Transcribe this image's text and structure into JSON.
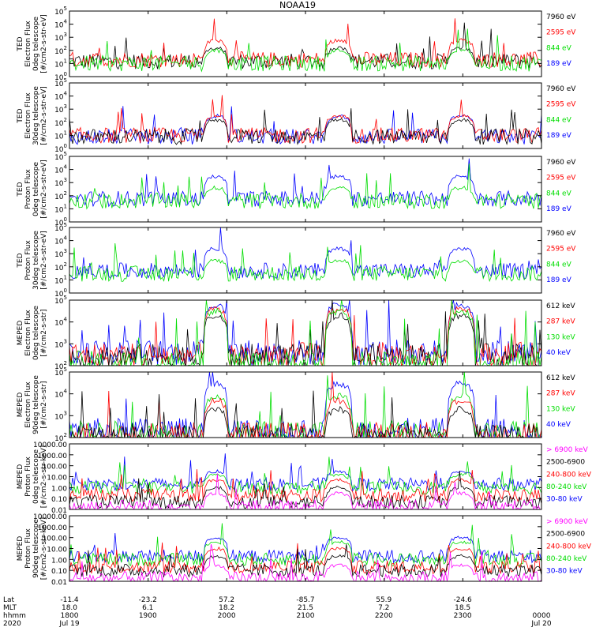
{
  "chart_data": {
    "type": "line",
    "title": "NOAA19",
    "x_range": [
      "1800",
      "0000"
    ],
    "grid": false,
    "legend": "right",
    "panels": [
      {
        "ylabel": [
          "TED",
          "Electron Flux",
          "0deg telescope",
          "[#/cm2-s-str-eV]"
        ],
        "yscale": "log",
        "ylim": [
          1,
          100000
        ],
        "yticks": [
          {
            "v": 1,
            "e": "0"
          },
          {
            "v": 10,
            "e": "1"
          },
          {
            "v": 100,
            "e": "2"
          },
          {
            "v": 1000,
            "e": "3"
          },
          {
            "v": 10000,
            "e": "4"
          },
          {
            "v": 100000,
            "e": "5"
          }
        ],
        "legend": [
          {
            "label": "7960 eV",
            "color": "#000000"
          },
          {
            "label": "2595 eV",
            "color": "#ff0000"
          },
          {
            "label": "844 eV",
            "color": "#00dd00"
          },
          {
            "label": "189 eV",
            "color": "#0000ff"
          }
        ],
        "series": [
          {
            "name": "7960 eV",
            "color": "#000000",
            "base": 15,
            "peak": 150
          },
          {
            "name": "2595 eV",
            "color": "#ff0000",
            "base": 20,
            "peak": 600
          },
          {
            "name": "844 eV",
            "color": "#00dd00",
            "base": 10,
            "peak": 100
          }
        ]
      },
      {
        "ylabel": [
          "TED",
          "Electron Flux",
          "30deg telescope",
          "[#/cm2-s-str-eV]"
        ],
        "yscale": "log",
        "ylim": [
          1,
          100000
        ],
        "yticks": [
          {
            "v": 1,
            "e": "0"
          },
          {
            "v": 10,
            "e": "1"
          },
          {
            "v": 100,
            "e": "2"
          },
          {
            "v": 1000,
            "e": "3"
          },
          {
            "v": 10000,
            "e": "4"
          },
          {
            "v": 100000,
            "e": "5"
          }
        ],
        "legend": [
          {
            "label": "7960 eV",
            "color": "#000000"
          },
          {
            "label": "2595 eV",
            "color": "#ff0000"
          },
          {
            "label": "844 eV",
            "color": "#00dd00"
          },
          {
            "label": "189 eV",
            "color": "#0000ff"
          }
        ],
        "series": [
          {
            "name": "189 eV",
            "color": "#0000ff",
            "base": 8,
            "peak": 300
          },
          {
            "name": "2595 eV",
            "color": "#ff0000",
            "base": 10,
            "peak": 300
          },
          {
            "name": "7960 eV",
            "color": "#000000",
            "base": 8,
            "peak": 150
          }
        ]
      },
      {
        "ylabel": [
          "TED",
          "Proton Flux",
          "0deg telescope",
          "[#/cm2-s-str-eV]"
        ],
        "yscale": "log",
        "ylim": [
          1,
          100000
        ],
        "yticks": [
          {
            "v": 1,
            "e": "0"
          },
          {
            "v": 10,
            "e": "1"
          },
          {
            "v": 100,
            "e": "2"
          },
          {
            "v": 1000,
            "e": "3"
          },
          {
            "v": 10000,
            "e": "4"
          },
          {
            "v": 100000,
            "e": "5"
          }
        ],
        "legend": [
          {
            "label": "7960 eV",
            "color": "#000000"
          },
          {
            "label": "2595 eV",
            "color": "#ff0000"
          },
          {
            "label": "844 eV",
            "color": "#00dd00"
          },
          {
            "label": "189 eV",
            "color": "#0000ff"
          }
        ],
        "series": [
          {
            "name": "189 eV",
            "color": "#0000ff",
            "base": 60,
            "peak": 3000
          },
          {
            "name": "844 eV",
            "color": "#00dd00",
            "base": 40,
            "peak": 400
          }
        ]
      },
      {
        "ylabel": [
          "TED",
          "Proton Flux",
          "30deg telescope",
          "[#/cm2-s-str-eV]"
        ],
        "yscale": "log",
        "ylim": [
          1,
          100000
        ],
        "yticks": [
          {
            "v": 1,
            "e": "0"
          },
          {
            "v": 10,
            "e": "1"
          },
          {
            "v": 100,
            "e": "2"
          },
          {
            "v": 1000,
            "e": "3"
          },
          {
            "v": 10000,
            "e": "4"
          },
          {
            "v": 100000,
            "e": "5"
          }
        ],
        "legend": [
          {
            "label": "7960 eV",
            "color": "#000000"
          },
          {
            "label": "2595 eV",
            "color": "#ff0000"
          },
          {
            "label": "844 eV",
            "color": "#00dd00"
          },
          {
            "label": "189 eV",
            "color": "#0000ff"
          }
        ],
        "series": [
          {
            "name": "189 eV",
            "color": "#0000ff",
            "base": 50,
            "peak": 2500
          },
          {
            "name": "844 eV",
            "color": "#00dd00",
            "base": 30,
            "peak": 300
          }
        ]
      },
      {
        "ylabel": [
          "MEPED",
          "Electron Flux",
          "0deg telescope",
          "[#/cm2-s-str]"
        ],
        "yscale": "log",
        "ylim": [
          100,
          100000
        ],
        "yticks": [
          {
            "v": 100,
            "e": "2"
          },
          {
            "v": 1000,
            "e": "3"
          },
          {
            "v": 10000,
            "e": "4"
          },
          {
            "v": 100000,
            "e": "5"
          }
        ],
        "legend": [
          {
            "label": "612 keV",
            "color": "#000000"
          },
          {
            "label": "287 keV",
            "color": "#ff0000"
          },
          {
            "label": "130 keV",
            "color": "#00dd00"
          },
          {
            "label": "40 keV",
            "color": "#0000ff"
          }
        ],
        "series": [
          {
            "name": "40 keV",
            "color": "#0000ff",
            "base": 400,
            "peak": 60000
          },
          {
            "name": "287 keV",
            "color": "#ff0000",
            "base": 300,
            "peak": 40000
          },
          {
            "name": "612 keV",
            "color": "#000000",
            "base": 250,
            "peak": 20000
          },
          {
            "name": "130 keV",
            "color": "#00dd00",
            "base": 120,
            "peak": 30000
          }
        ]
      },
      {
        "ylabel": [
          "MEPED",
          "Electron Flux",
          "90deg telescope",
          "[#/cm2-s-str]"
        ],
        "yscale": "log",
        "ylim": [
          100,
          100000
        ],
        "yticks": [
          {
            "v": 100,
            "e": "2"
          },
          {
            "v": 1000,
            "e": "3"
          },
          {
            "v": 10000,
            "e": "4"
          },
          {
            "v": 100000,
            "e": "5"
          }
        ],
        "legend": [
          {
            "label": "612 keV",
            "color": "#000000"
          },
          {
            "label": "287 keV",
            "color": "#ff0000"
          },
          {
            "label": "130 keV",
            "color": "#00dd00"
          },
          {
            "label": "40 keV",
            "color": "#0000ff"
          }
        ],
        "series": [
          {
            "name": "40 keV",
            "color": "#0000ff",
            "base": 200,
            "peak": 30000
          },
          {
            "name": "130 keV",
            "color": "#00dd00",
            "base": 150,
            "peak": 8000
          },
          {
            "name": "287 keV",
            "color": "#ff0000",
            "base": 130,
            "peak": 5000
          },
          {
            "name": "612 keV",
            "color": "#000000",
            "base": 110,
            "peak": 2000
          }
        ]
      },
      {
        "ylabel": [
          "MEPED",
          "Proton Flux",
          "0deg telescope",
          "[#/cm2-s-str-keV]"
        ],
        "yscale": "log",
        "ylim": [
          0.01,
          10000
        ],
        "yticks": [
          {
            "v": 0.01,
            "t": "0.01"
          },
          {
            "v": 0.1,
            "t": "0.10"
          },
          {
            "v": 1,
            "t": "1.00"
          },
          {
            "v": 10,
            "t": "10.00"
          },
          {
            "v": 100,
            "t": "100.00"
          },
          {
            "v": 1000,
            "t": "1000.00"
          },
          {
            "v": 10000,
            "t": "10000.00"
          }
        ],
        "legend": [
          {
            "label": "> 6900 keV",
            "color": "#ff00ff"
          },
          {
            "label": "2500-6900",
            "color": "#000000"
          },
          {
            "label": "240-800 keV",
            "color": "#ff0000"
          },
          {
            "label": "80-240 keV",
            "color": "#00dd00"
          },
          {
            "label": "30-80 keV",
            "color": "#0000ff"
          }
        ],
        "series": [
          {
            "name": "30-80 keV",
            "color": "#0000ff",
            "base": 2,
            "peak": 30
          },
          {
            "name": "80-240 keV",
            "color": "#00dd00",
            "base": 1,
            "peak": 15
          },
          {
            "name": "240-800 keV",
            "color": "#ff0000",
            "base": 0.2,
            "peak": 5
          },
          {
            "name": "2500-6900",
            "color": "#000000",
            "base": 0.05,
            "peak": 1
          },
          {
            "name": "> 6900 keV",
            "color": "#ff00ff",
            "base": 0.02,
            "peak": 0.3
          }
        ]
      },
      {
        "ylabel": [
          "MEPED",
          "Proton Flux",
          "90deg telescope",
          "[#/cm2-s-str-keV]"
        ],
        "yscale": "log",
        "ylim": [
          0.01,
          10000
        ],
        "yticks": [
          {
            "v": 0.01,
            "t": "0.01"
          },
          {
            "v": 0.1,
            "t": "0.10"
          },
          {
            "v": 1,
            "t": "1.00"
          },
          {
            "v": 10,
            "t": "10.00"
          },
          {
            "v": 100,
            "t": "100.00"
          },
          {
            "v": 1000,
            "t": "1000.00"
          },
          {
            "v": 10000,
            "t": "10000.00"
          }
        ],
        "legend": [
          {
            "label": "> 6900 keV",
            "color": "#ff00ff"
          },
          {
            "label": "2500-6900",
            "color": "#000000"
          },
          {
            "label": "240-800 keV",
            "color": "#ff0000"
          },
          {
            "label": "80-240 keV",
            "color": "#00dd00"
          },
          {
            "label": "30-80 keV",
            "color": "#0000ff"
          }
        ],
        "series": [
          {
            "name": "30-80 keV",
            "color": "#0000ff",
            "base": 2,
            "peak": 100
          },
          {
            "name": "80-240 keV",
            "color": "#00dd00",
            "base": 1,
            "peak": 40
          },
          {
            "name": "240-800 keV",
            "color": "#ff0000",
            "base": 0.2,
            "peak": 10
          },
          {
            "name": "2500-6900",
            "color": "#000000",
            "base": 0.1,
            "peak": 2
          },
          {
            "name": "> 6900 keV",
            "color": "#ff00ff",
            "base": 0.02,
            "peak": 0.3
          }
        ]
      }
    ],
    "passes": [
      {
        "center": 0.31,
        "halfwidth": 0.025
      },
      {
        "center": 0.57,
        "halfwidth": 0.028
      },
      {
        "center": 0.83,
        "halfwidth": 0.028
      }
    ],
    "footer": {
      "row_labels": [
        "Lat",
        "MLT",
        "hhmm",
        "2020"
      ],
      "columns": [
        {
          "pos": 0.0,
          "lat": "-11.4",
          "mlt": "18.0",
          "hhmm": "1800",
          "date": "Jul 19"
        },
        {
          "pos": 0.166,
          "lat": "-23.2",
          "mlt": "6.1",
          "hhmm": "1900",
          "date": ""
        },
        {
          "pos": 0.333,
          "lat": "57.2",
          "mlt": "18.2",
          "hhmm": "2000",
          "date": ""
        },
        {
          "pos": 0.5,
          "lat": "-85.7",
          "mlt": "21.5",
          "hhmm": "2100",
          "date": ""
        },
        {
          "pos": 0.666,
          "lat": "55.9",
          "mlt": "7.2",
          "hhmm": "2200",
          "date": ""
        },
        {
          "pos": 0.833,
          "lat": "-24.6",
          "mlt": "18.5",
          "hhmm": "2300",
          "date": ""
        },
        {
          "pos": 1.0,
          "lat": "",
          "mlt": "",
          "hhmm": "0000",
          "date": "Jul 20"
        }
      ]
    }
  }
}
